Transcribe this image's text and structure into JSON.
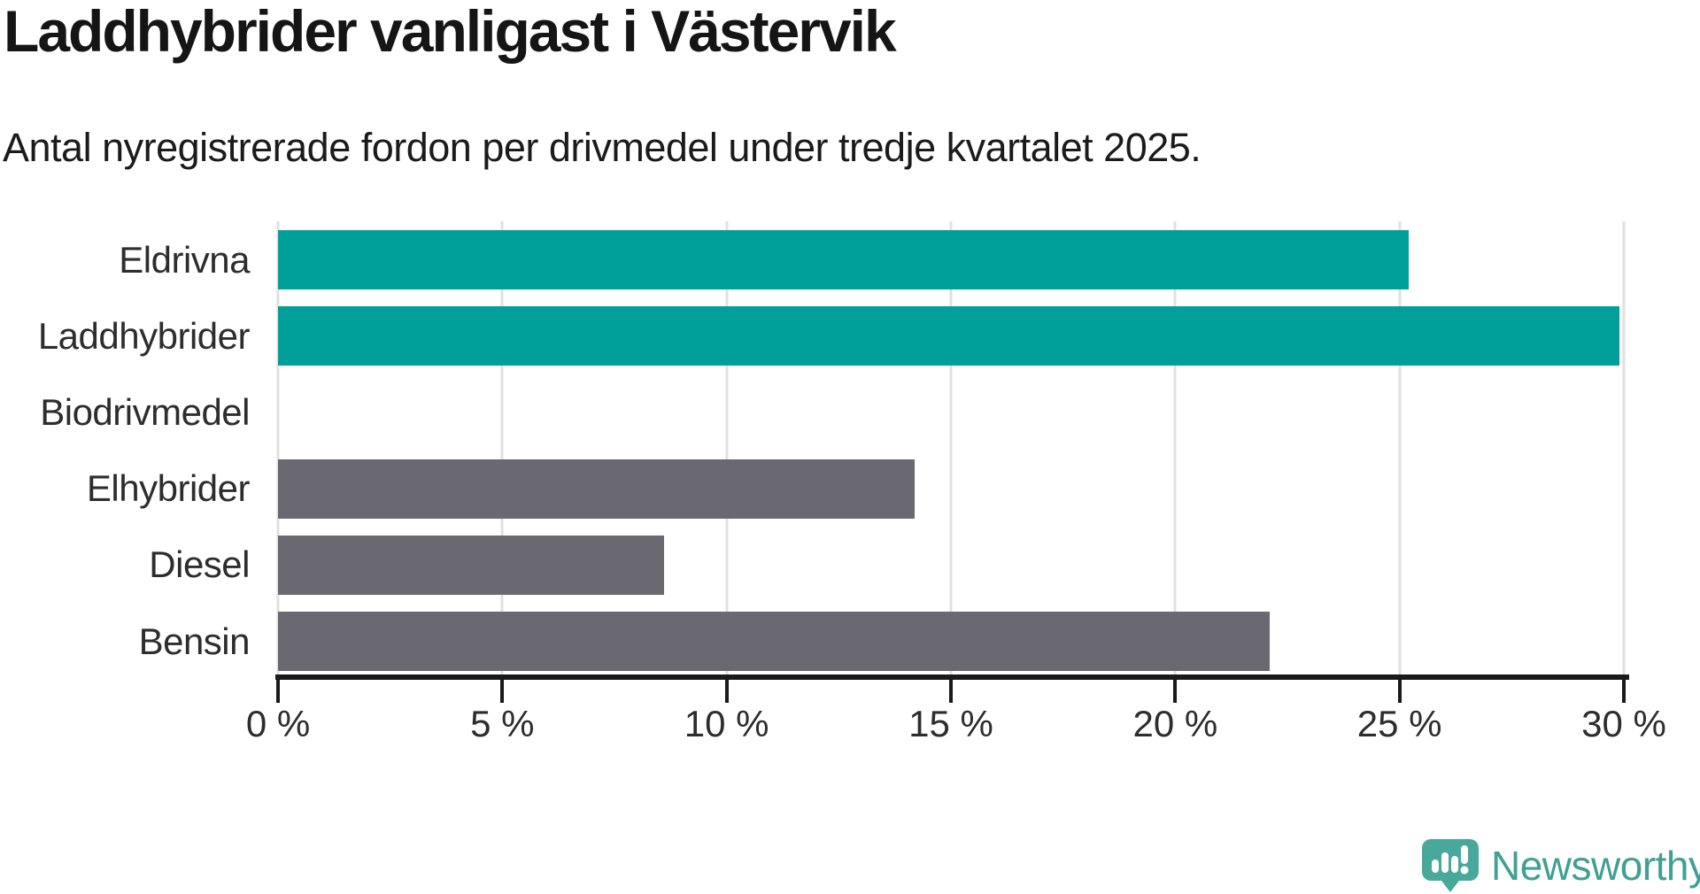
{
  "header": {
    "title": "Laddhybrider vanligast i Västervik",
    "subtitle": "Antal nyregistrerade fordon per drivmedel under tredje kvartalet 2025."
  },
  "colors": {
    "highlight": "#00a09a",
    "default_bar": "#6a6870",
    "gridline": "#e0e0e0",
    "axis": "#1a1a1a",
    "text": "#2d2d2d",
    "brand_teal": "#3fa093",
    "logo_bubble": "#48a89b"
  },
  "chart_data": {
    "type": "bar",
    "orientation": "horizontal",
    "title": "Laddhybrider vanligast i Västervik",
    "subtitle": "Antal nyregistrerade fordon per drivmedel under tredje kvartalet 2025.",
    "categories": [
      "Eldrivna",
      "Laddhybrider",
      "Biodrivmedel",
      "Elhybrider",
      "Diesel",
      "Bensin"
    ],
    "values": [
      25.2,
      29.9,
      0,
      14.2,
      8.6,
      22.1
    ],
    "unit": "%",
    "bar_colors": [
      "#00a09a",
      "#00a09a",
      "#6a6870",
      "#6a6870",
      "#6a6870",
      "#6a6870"
    ],
    "xlim": [
      0,
      30
    ],
    "x_ticks": [
      0,
      5,
      10,
      15,
      20,
      25,
      30
    ],
    "x_tick_labels": [
      "0 %",
      "5 %",
      "10 %",
      "15 %",
      "20 %",
      "25 %",
      "30 %"
    ],
    "grid": true,
    "legend": false
  },
  "branding": {
    "logo_text": "Newsworthy",
    "logo_icon": "newsworthy-speech-bubble-chart-icon"
  }
}
